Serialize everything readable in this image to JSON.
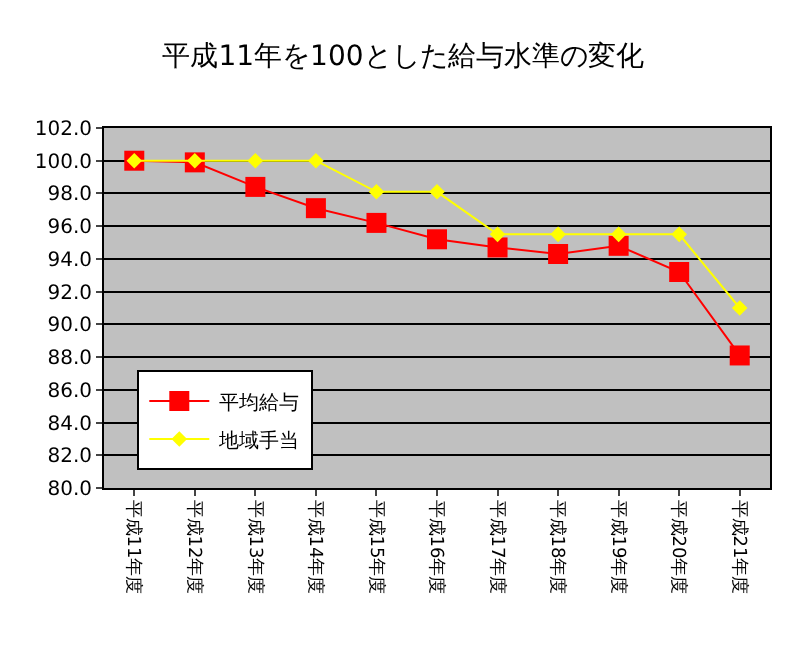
{
  "chart_data": {
    "type": "line",
    "title": "平成11年を100とした給与水準の変化",
    "categories": [
      "平成11年度",
      "平成12年度",
      "平成13年度",
      "平成14年度",
      "平成15年度",
      "平成16年度",
      "平成17年度",
      "平成18年度",
      "平成19年度",
      "平成20年度",
      "平成21年度"
    ],
    "series": [
      {
        "name": "平均給与",
        "color": "#ff0000",
        "marker": "square",
        "values": [
          100.0,
          99.9,
          98.4,
          97.1,
          96.2,
          95.2,
          94.7,
          94.3,
          94.8,
          93.2,
          88.1
        ]
      },
      {
        "name": "地域手当",
        "color": "#ffff00",
        "marker": "diamond",
        "values": [
          100.0,
          100.0,
          100.0,
          100.0,
          98.1,
          98.1,
          95.5,
          95.5,
          95.5,
          95.5,
          91.0
        ]
      }
    ],
    "ylim": [
      80,
      102
    ],
    "yticks": [
      {
        "value": 80,
        "label": "80.0"
      },
      {
        "value": 82,
        "label": "82.0"
      },
      {
        "value": 84,
        "label": "84.0"
      },
      {
        "value": 86,
        "label": "86.0"
      },
      {
        "value": 88,
        "label": "88.0"
      },
      {
        "value": 90,
        "label": "90.0"
      },
      {
        "value": 92,
        "label": "92.0"
      },
      {
        "value": 94,
        "label": "94.0"
      },
      {
        "value": 96,
        "label": "96.0"
      },
      {
        "value": 98,
        "label": "98.0"
      },
      {
        "value": 100,
        "label": "100.0"
      },
      {
        "value": 102,
        "label": "102.0"
      }
    ],
    "grid": "y",
    "legend": "bottom left"
  }
}
